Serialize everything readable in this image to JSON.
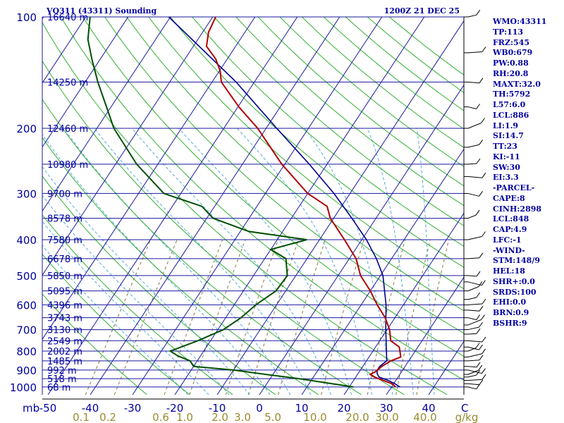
{
  "header": {
    "left": "VQ311 (43311) Sounding",
    "right": "1200Z 21 DEC 25"
  },
  "indices": [
    "WMO:43311",
    "TP:113",
    "FRZ:545",
    "WB0:679",
    "PW:0.88",
    "RH:20.8",
    "MAXT:32.0",
    "TH:5792",
    "L57:6.0",
    "LCL:886",
    "LI:1.9",
    "SI:14.7",
    "TT:23",
    "KI:-11",
    "SW:30",
    "EI:3.3",
    "-PARCEL-",
    "CAPE:8",
    "CINH:2898",
    "LCL:848",
    "CAP:4.9",
    "LFC:-1",
    "-WIND-",
    "STM:148/9",
    "HEL:18",
    "SHR+:0.0",
    "SRDS:100",
    "EHI:0.0",
    "BRN:0.9",
    "BSHR:9"
  ],
  "colors": {
    "isobar": "#1a1aa0",
    "isotherm": "#1a1aa0",
    "dry_adiabat": "#33b033",
    "moist_adiabat": "#55aadd",
    "mixing_ratio": "#8a7a3a",
    "temperature": "#b00000",
    "dewpoint": "#005000",
    "parcel": "#00008b",
    "text": "#0000a0",
    "mixing_ratio_label": "#9a8a30"
  },
  "chart_data": {
    "type": "skew-t log-p sounding",
    "title": "VQ311 (43311) Sounding",
    "subtitle": "1200Z 21 DEC 25",
    "x_unit_label": "C",
    "y_unit_label": "mb",
    "pressure_levels": [
      100,
      200,
      300,
      400,
      500,
      600,
      700,
      800,
      900,
      1000
    ],
    "temperature_ticks": [
      -50,
      -40,
      -30,
      -20,
      -10,
      0,
      10,
      20,
      30,
      40
    ],
    "mixing_ratio_labels": [
      "0.1",
      "0.2",
      "0.6",
      "1.0",
      "2.0",
      "3.0",
      "5.0",
      "10.0",
      "20.0",
      "30.0",
      "40.0",
      "g/kg"
    ],
    "height_labels": [
      {
        "p": 100,
        "h": "16640 m"
      },
      {
        "p": 150,
        "h": "14250 m"
      },
      {
        "p": 200,
        "h": "12460 m"
      },
      {
        "p": 250,
        "h": "10980 m"
      },
      {
        "p": 300,
        "h": "9700 m"
      },
      {
        "p": 350,
        "h": "8578 m"
      },
      {
        "p": 400,
        "h": "7580 m"
      },
      {
        "p": 450,
        "h": "6678 m"
      },
      {
        "p": 500,
        "h": "5850 m"
      },
      {
        "p": 550,
        "h": "5095 m"
      },
      {
        "p": 600,
        "h": "4396 m"
      },
      {
        "p": 650,
        "h": "3743 m"
      },
      {
        "p": 700,
        "h": "3130 m"
      },
      {
        "p": 750,
        "h": "2549 m"
      },
      {
        "p": 800,
        "h": "2002 m"
      },
      {
        "p": 850,
        "h": "1485 m"
      },
      {
        "p": 900,
        "h": "992 m"
      },
      {
        "p": 950,
        "h": "518 m"
      },
      {
        "p": 1000,
        "h": "68 m"
      }
    ],
    "temperature_profile": [
      [
        1000,
        31
      ],
      [
        980,
        29.6
      ],
      [
        960,
        27
      ],
      [
        940,
        24.4
      ],
      [
        925,
        23
      ],
      [
        910,
        23.8
      ],
      [
        880,
        24.5
      ],
      [
        850,
        25.8
      ],
      [
        830,
        27.5
      ],
      [
        800,
        26.4
      ],
      [
        780,
        25.6
      ],
      [
        750,
        22.6
      ],
      [
        700,
        20.6
      ],
      [
        650,
        17.7
      ],
      [
        600,
        13.8
      ],
      [
        550,
        10
      ],
      [
        500,
        5.3
      ],
      [
        450,
        1.6
      ],
      [
        400,
        -4.1
      ],
      [
        350,
        -10.8
      ],
      [
        325,
        -13.4
      ],
      [
        300,
        -20
      ],
      [
        250,
        -30.7
      ],
      [
        200,
        -42
      ],
      [
        175,
        -49.8
      ],
      [
        150,
        -57.8
      ],
      [
        140,
        -59.8
      ],
      [
        130,
        -62.7
      ],
      [
        120,
        -66.9
      ],
      [
        110,
        -68.6
      ],
      [
        100,
        -69.3
      ]
    ],
    "dewpoint_profile": [
      [
        1000,
        21
      ],
      [
        950,
        7
      ],
      [
        930,
        0
      ],
      [
        900,
        -10
      ],
      [
        880,
        -20
      ],
      [
        850,
        -21.7
      ],
      [
        825,
        -25.3
      ],
      [
        800,
        -27.9
      ],
      [
        750,
        -23
      ],
      [
        700,
        -18.7
      ],
      [
        650,
        -16.4
      ],
      [
        600,
        -14.9
      ],
      [
        550,
        -12.3
      ],
      [
        500,
        -12
      ],
      [
        450,
        -15
      ],
      [
        425,
        -20
      ],
      [
        400,
        -13
      ],
      [
        380,
        -28
      ],
      [
        350,
        -38.5
      ],
      [
        325,
        -43
      ],
      [
        300,
        -54
      ],
      [
        250,
        -65
      ],
      [
        200,
        -76
      ],
      [
        180,
        -80
      ],
      [
        150,
        -87
      ],
      [
        130,
        -92
      ],
      [
        115,
        -96
      ],
      [
        100,
        -99
      ]
    ],
    "parcel_profile": [
      [
        1000,
        32
      ],
      [
        980,
        30.3
      ],
      [
        960,
        28.2
      ],
      [
        940,
        25.5
      ],
      [
        920,
        24.5
      ],
      [
        900,
        24
      ],
      [
        880,
        24
      ],
      [
        850,
        24.8
      ],
      [
        800,
        23.2
      ],
      [
        700,
        19.7
      ],
      [
        600,
        15.9
      ],
      [
        500,
        10.6
      ],
      [
        450,
        6.4
      ],
      [
        400,
        1.1
      ],
      [
        350,
        -5.7
      ],
      [
        300,
        -13.8
      ],
      [
        250,
        -24.2
      ],
      [
        200,
        -37.5
      ],
      [
        150,
        -54.3
      ],
      [
        100,
        -80.4
      ]
    ],
    "wind_barb_levels": [
      1000,
      980,
      960,
      940,
      925,
      900,
      880,
      850,
      830,
      800,
      780,
      750,
      720,
      700,
      680,
      650,
      620,
      600,
      580,
      550,
      520,
      500,
      450,
      400,
      350,
      300,
      270,
      250,
      225,
      200,
      175,
      150,
      125,
      100
    ]
  }
}
